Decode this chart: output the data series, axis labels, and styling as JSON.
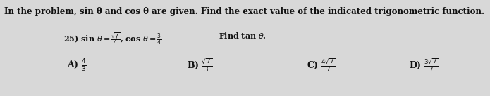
{
  "bg_color": "#d8d8d8",
  "text_color": "#111111",
  "title": "In the problem, sin θ and cos θ are given. Find the exact value of the indicated trigonometric function.",
  "title_fontsize": 8.5,
  "body_fontsize": 8.0,
  "answer_fontsize": 9.0,
  "figsize": [
    6.95,
    1.37
  ],
  "dpi": 100
}
